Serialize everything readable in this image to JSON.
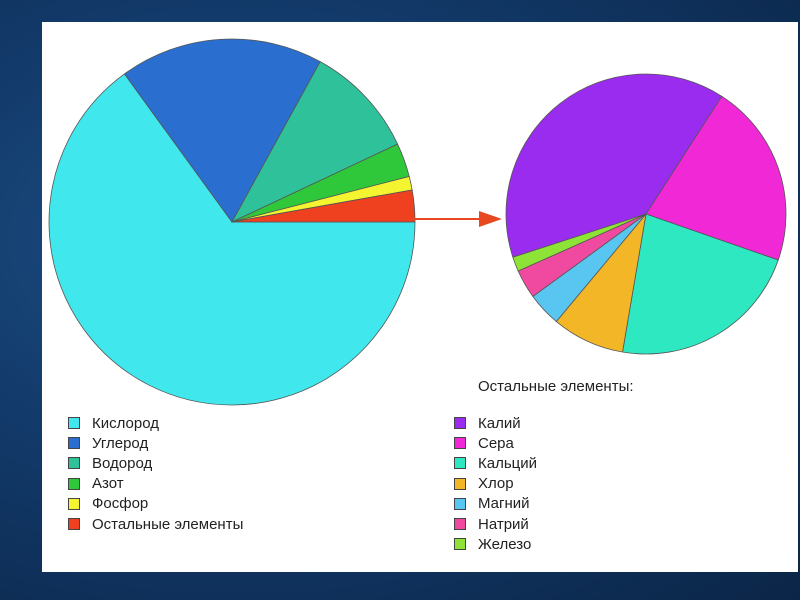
{
  "chart_data": [
    {
      "type": "pie",
      "title": "",
      "slices": [
        {
          "label": "Кислород",
          "value": 65.0,
          "color": "#40e8ee"
        },
        {
          "label": "Углерод",
          "value": 18.0,
          "color": "#2a6fd0"
        },
        {
          "label": "Водород",
          "value": 10.0,
          "color": "#2fc29a"
        },
        {
          "label": "Азот",
          "value": 3.0,
          "color": "#2ec83a"
        },
        {
          "label": "Фосфор",
          "value": 1.2,
          "color": "#f4f430"
        },
        {
          "label": "Остальные элементы",
          "value": 2.8,
          "color": "#ef4020"
        }
      ],
      "start_angle_deg": 0,
      "direction": "clockwise-from-right",
      "arrow_color": "#e84820"
    },
    {
      "type": "pie",
      "title": "Остальные элементы:",
      "slices": [
        {
          "label": "Калий",
          "value": 35.0,
          "color": "#9a2cf0"
        },
        {
          "label": "Сера",
          "value": 19.0,
          "color": "#f028d6"
        },
        {
          "label": "Кальций",
          "value": 20.0,
          "color": "#2ee8c2"
        },
        {
          "label": "Хлор",
          "value": 7.5,
          "color": "#f2b626"
        },
        {
          "label": "Магний",
          "value": 3.5,
          "color": "#58c6f0"
        },
        {
          "label": "Натрий",
          "value": 3.0,
          "color": "#f04aa0"
        },
        {
          "label": "Железо",
          "value": 1.5,
          "color": "#8ee436"
        }
      ],
      "start_angle_deg": 0,
      "direction": "clockwise-from-right"
    }
  ]
}
